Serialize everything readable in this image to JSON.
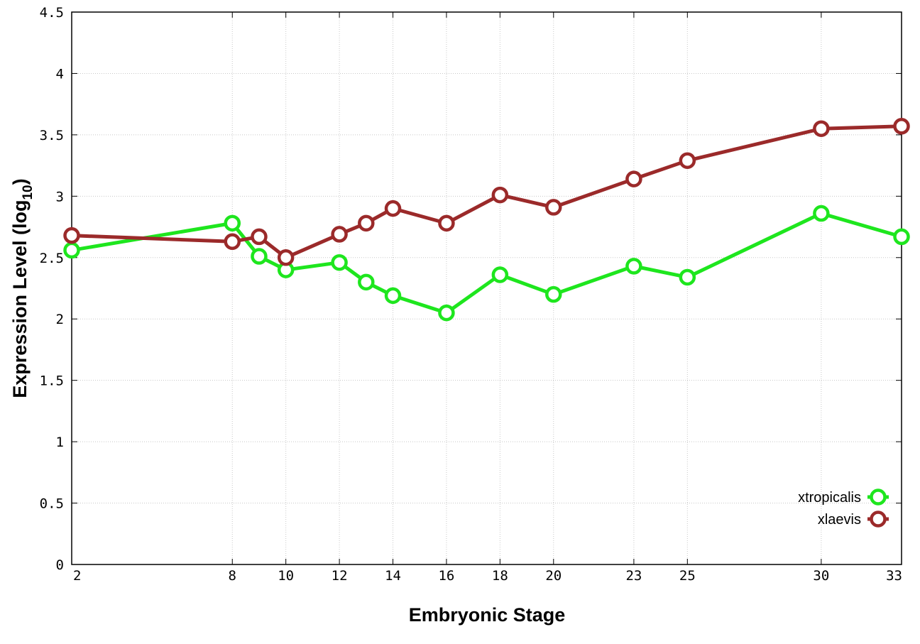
{
  "chart_data": {
    "type": "line",
    "xlabel": "Embryonic Stage",
    "ylabel_main": "Expression Level (log",
    "ylabel_sub": "10",
    "ylabel_close": ")",
    "x_ticks": [
      "2",
      "8",
      "10",
      "12",
      "14",
      "16",
      "18",
      "20",
      "23",
      "25",
      "30",
      "33"
    ],
    "y_ticks": [
      "0",
      "0.5",
      "1",
      "1.5",
      "2",
      "2.5",
      "3",
      "3.5",
      "4",
      "4.5"
    ],
    "ylim": [
      0,
      4.5
    ],
    "x_positions": [
      "2",
      "8",
      "9",
      "10",
      "12",
      "13",
      "14",
      "16",
      "18",
      "20",
      "23",
      "25",
      "30",
      "33"
    ],
    "grid": true,
    "legend_position": "bottom-right",
    "series": [
      {
        "name": "xtropicalis",
        "color": "#1ee61e",
        "x": [
          "2",
          "8",
          "9",
          "10",
          "12",
          "13",
          "14",
          "16",
          "18",
          "20",
          "23",
          "25",
          "30",
          "33"
        ],
        "values": [
          2.56,
          2.78,
          2.51,
          2.4,
          2.46,
          2.3,
          2.19,
          2.05,
          2.36,
          2.2,
          2.43,
          2.34,
          2.86,
          2.67
        ]
      },
      {
        "name": "xlaevis",
        "color": "#9b2a2a",
        "x": [
          "2",
          "8",
          "9",
          "10",
          "12",
          "13",
          "14",
          "16",
          "18",
          "20",
          "23",
          "25",
          "30",
          "33"
        ],
        "values": [
          2.68,
          2.63,
          2.67,
          2.5,
          2.69,
          2.78,
          2.9,
          2.78,
          3.01,
          2.91,
          3.14,
          3.29,
          3.55,
          3.57
        ]
      }
    ]
  }
}
